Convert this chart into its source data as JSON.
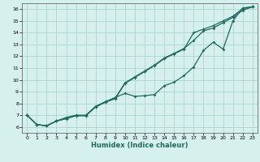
{
  "xlabel": "Humidex (Indice chaleur)",
  "bg_color": "#d6f0ed",
  "grid_color": "#aed4ce",
  "line_color": "#1e6b5e",
  "xlim": [
    -0.5,
    23.5
  ],
  "ylim": [
    5.5,
    16.5
  ],
  "x_ticks": [
    0,
    1,
    2,
    3,
    4,
    5,
    6,
    7,
    8,
    9,
    10,
    11,
    12,
    13,
    14,
    15,
    16,
    17,
    18,
    19,
    20,
    21,
    22,
    23
  ],
  "y_ticks": [
    6,
    7,
    8,
    9,
    10,
    11,
    12,
    13,
    14,
    15,
    16
  ],
  "line1_x": [
    0,
    1,
    2,
    3,
    4,
    5,
    6,
    7,
    8,
    9,
    10,
    11,
    12,
    13,
    14,
    15,
    16,
    17,
    18,
    19,
    20,
    21,
    22,
    23
  ],
  "line1_y": [
    7.0,
    6.2,
    6.1,
    6.5,
    6.7,
    6.95,
    6.95,
    7.7,
    8.1,
    8.4,
    9.7,
    10.2,
    10.7,
    11.2,
    11.8,
    12.2,
    12.6,
    14.0,
    14.3,
    14.6,
    15.0,
    15.4,
    16.05,
    16.2
  ],
  "line2_x": [
    0,
    1,
    2,
    3,
    4,
    5,
    6,
    7,
    8,
    9,
    10,
    11,
    12,
    13,
    14,
    15,
    16,
    17,
    18,
    19,
    20,
    21,
    22,
    23
  ],
  "line2_y": [
    7.0,
    6.2,
    6.1,
    6.5,
    6.8,
    7.0,
    7.0,
    7.75,
    8.15,
    8.5,
    8.85,
    8.6,
    8.65,
    8.75,
    9.5,
    9.8,
    10.35,
    11.1,
    12.5,
    13.2,
    12.6,
    15.0,
    16.1,
    16.2
  ],
  "line3_x": [
    0,
    1,
    2,
    3,
    4,
    5,
    6,
    7,
    8,
    9,
    10,
    11,
    12,
    13,
    14,
    15,
    16,
    17,
    18,
    19,
    20,
    21,
    22,
    23
  ],
  "line3_y": [
    7.0,
    6.2,
    6.1,
    6.5,
    6.75,
    6.97,
    6.97,
    7.72,
    8.12,
    8.45,
    9.75,
    10.25,
    10.75,
    11.25,
    11.85,
    12.25,
    12.65,
    13.35,
    14.15,
    14.4,
    14.85,
    15.3,
    15.9,
    16.2
  ]
}
